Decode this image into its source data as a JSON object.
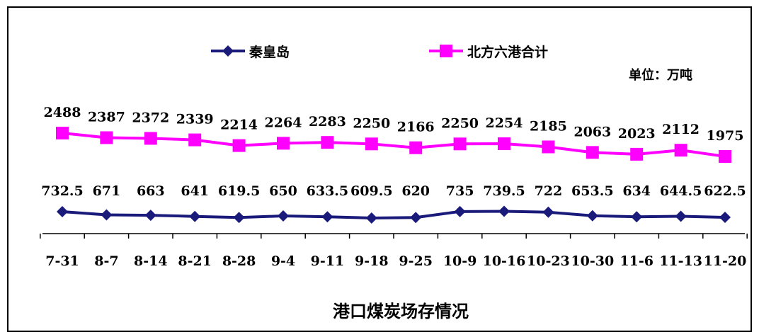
{
  "chart_data": {
    "type": "line",
    "title": "港口煤炭场存情况",
    "unit_label": "单位：万吨",
    "legend_position": "top-center",
    "categories": [
      "7-31",
      "8-7",
      "8-14",
      "8-21",
      "8-28",
      "9-4",
      "9-11",
      "9-18",
      "9-25",
      "10-9",
      "10-16",
      "10-23",
      "10-30",
      "11-6",
      "11-13",
      "11-20"
    ],
    "series": [
      {
        "name": "秦皇岛",
        "color": "#1a1a7a",
        "marker": "diamond",
        "values": [
          732.5,
          671,
          663,
          641,
          619.5,
          650,
          633.5,
          609.5,
          620,
          735,
          739.5,
          722,
          653.5,
          634,
          644.5,
          622.5
        ],
        "labels": [
          "732.5",
          "671",
          "663",
          "641",
          "619.5",
          "650",
          "633.5",
          "609.5",
          "620",
          "735",
          "739.5",
          "722",
          "653.5",
          "634",
          "644.5",
          "622.5"
        ]
      },
      {
        "name": "北方六港合计",
        "color": "#ff00ff",
        "marker": "square",
        "values": [
          2488,
          2387,
          2372,
          2339,
          2214,
          2264,
          2283,
          2250,
          2166,
          2250,
          2254,
          2185,
          2063,
          2023,
          2112,
          1975
        ],
        "labels": [
          "2488",
          "2387",
          "2372",
          "2339",
          "2214",
          "2264",
          "2283",
          "2250",
          "2166",
          "2250",
          "2254",
          "2185",
          "2063",
          "2023",
          "2112",
          "1975"
        ]
      }
    ],
    "grid": false
  }
}
